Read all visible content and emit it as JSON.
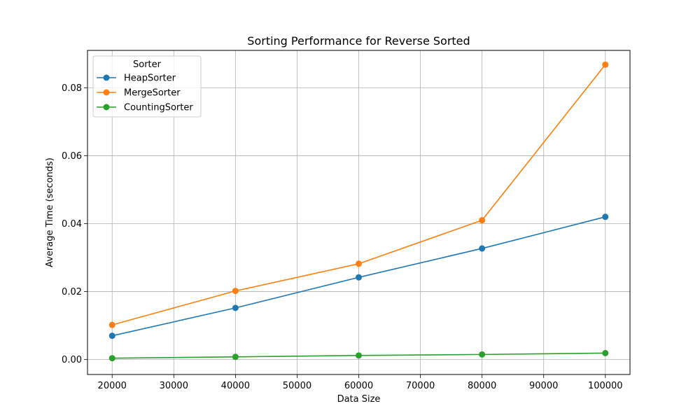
{
  "chart_data": {
    "type": "line",
    "title": "Sorting Performance for Reverse Sorted",
    "xlabel": "Data Size",
    "ylabel": "Average Time (seconds)",
    "x": [
      20000,
      40000,
      60000,
      80000,
      100000
    ],
    "xlim": [
      16000,
      104000
    ],
    "ylim": [
      -0.0044,
      0.091
    ],
    "x_ticks": [
      20000,
      30000,
      40000,
      50000,
      60000,
      70000,
      80000,
      90000,
      100000
    ],
    "y_ticks": [
      0.0,
      0.02,
      0.04,
      0.06,
      0.08
    ],
    "y_tick_labels": [
      "0.00",
      "0.02",
      "0.04",
      "0.06",
      "0.08"
    ],
    "grid": true,
    "legend": {
      "title": "Sorter",
      "placement": "top-left"
    },
    "series": [
      {
        "name": "HeapSorter",
        "color": "#1f77b4",
        "values": [
          0.007,
          0.0152,
          0.0242,
          0.0327,
          0.042
        ]
      },
      {
        "name": "MergeSorter",
        "color": "#ff7f0e",
        "values": [
          0.0102,
          0.0202,
          0.0282,
          0.041,
          0.0868
        ]
      },
      {
        "name": "CountingSorter",
        "color": "#2ca02c",
        "values": [
          0.0004,
          0.0008,
          0.0012,
          0.0015,
          0.0019
        ]
      }
    ]
  }
}
